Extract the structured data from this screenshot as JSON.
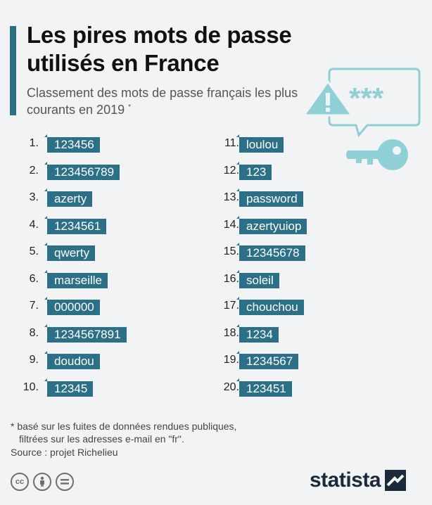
{
  "header": {
    "title": "Les pires mots de passe utilisés en France",
    "subtitle": "Classement des mots de passe français les plus courants en 2019",
    "subtitle_mark": "*"
  },
  "illustration": {
    "icons": [
      "warning-icon",
      "speech-bubble-icon",
      "key-icon"
    ],
    "stars_text": "***",
    "color": "#8fd0d6"
  },
  "ranking": {
    "left": [
      {
        "rank": "1.",
        "password": "123456"
      },
      {
        "rank": "2.",
        "password": "123456789"
      },
      {
        "rank": "3.",
        "password": "azerty"
      },
      {
        "rank": "4.",
        "password": "1234561"
      },
      {
        "rank": "5.",
        "password": "qwerty"
      },
      {
        "rank": "6.",
        "password": "marseille"
      },
      {
        "rank": "7.",
        "password": "000000"
      },
      {
        "rank": "8.",
        "password": "1234567891"
      },
      {
        "rank": "9.",
        "password": "doudou"
      },
      {
        "rank": "10.",
        "password": "12345"
      }
    ],
    "right": [
      {
        "rank": "11.",
        "password": "loulou"
      },
      {
        "rank": "12.",
        "password": "123"
      },
      {
        "rank": "13.",
        "password": "password"
      },
      {
        "rank": "14.",
        "password": "azertyuiop"
      },
      {
        "rank": "15.",
        "password": "12345678"
      },
      {
        "rank": "16.",
        "password": "soleil"
      },
      {
        "rank": "17.",
        "password": "chouchou"
      },
      {
        "rank": "18.",
        "password": "1234"
      },
      {
        "rank": "19.",
        "password": "1234567"
      },
      {
        "rank": "20.",
        "password": "123451"
      }
    ],
    "label_color": "#2c7088"
  },
  "footer": {
    "footnote_line1": "* basé sur les fuites de données rendues publiques,",
    "footnote_line2": "filtrées sur les adresses e-mail en \"fr\".",
    "source": "Source : projet Richelieu",
    "license_icons": [
      "creative-commons-icon",
      "attribution-icon",
      "no-derivatives-icon"
    ],
    "brand": "statista"
  }
}
